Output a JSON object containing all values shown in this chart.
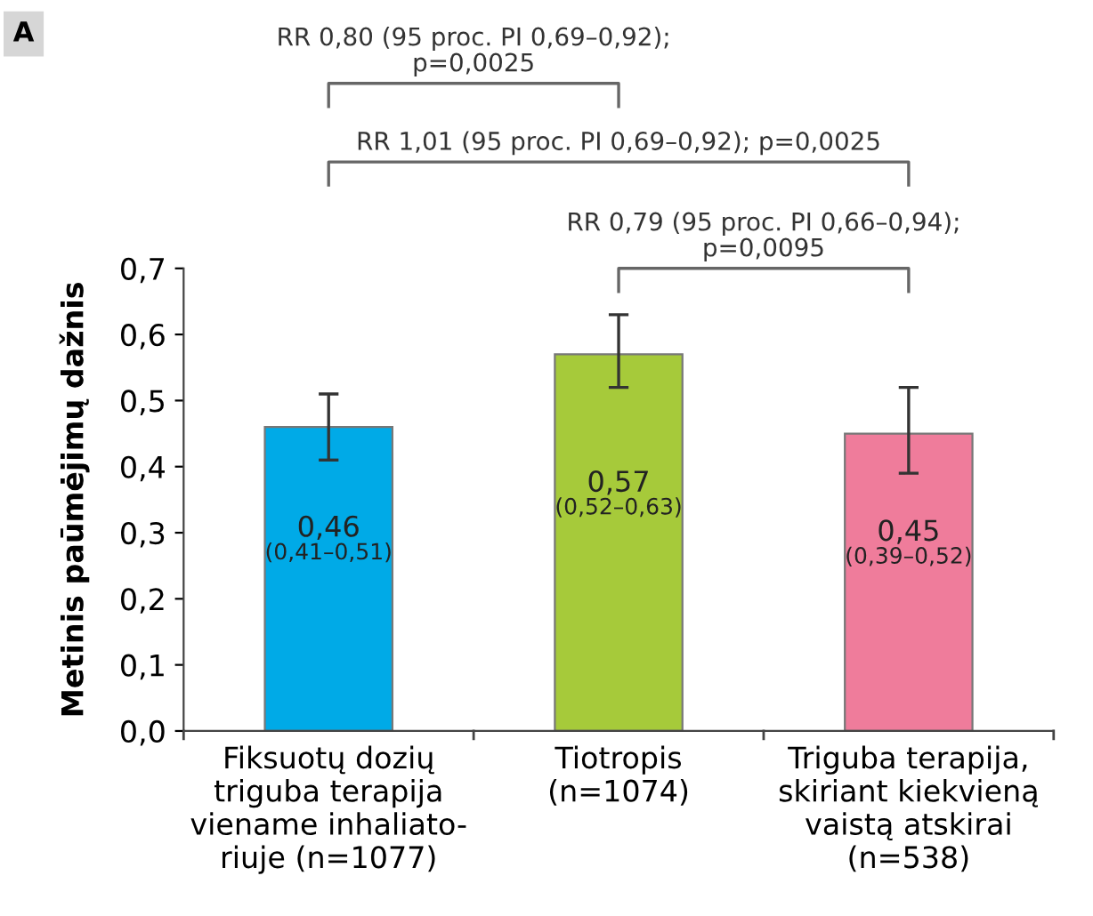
{
  "chart_data": {
    "type": "bar",
    "categories": [
      "Fiksuotų dozių\ntriguba terapija\nviename inhaliato-\nriuje (n=1077)",
      "Tiotropis\n(n=1074)",
      "Triguba terapija,\nskiriant kiekvieną\nvaistą atskirai\n(n=538)"
    ],
    "values": [
      0.46,
      0.57,
      0.45
    ],
    "colors": [
      "#00aae7",
      "#a6ca3a",
      "#ef7c9b"
    ],
    "errors": [
      [
        0.41,
        0.51
      ],
      [
        0.52,
        0.63
      ],
      [
        0.39,
        0.52
      ]
    ],
    "value_labels": [
      "0,46\n(0,41–0,51)",
      "0,57\n(0,52–0,63)",
      "0,45\n(0,39–0,52)"
    ],
    "ylabel": "Metinis paūmėjimų dažnis",
    "ylim": [
      0,
      0.7
    ],
    "yticks": [
      {
        "value": 0,
        "label": "0,0"
      },
      {
        "value": 0.1,
        "label": "0,1"
      },
      {
        "value": 0.2,
        "label": "0,2"
      },
      {
        "value": 0.3,
        "label": "0,3"
      },
      {
        "value": 0.4,
        "label": "0,4"
      },
      {
        "value": 0.5,
        "label": "0,5"
      },
      {
        "value": 0.6,
        "label": "0,6"
      },
      {
        "value": 0.7,
        "label": "0,7"
      }
    ],
    "grid": false,
    "annotations": [
      "A",
      "RR 0,80 (95 proc. PI 0,69–0,92);\np=0,0025",
      "RR 1,01 (95 proc. PI 0,69–0,92); p=0,0025",
      "RR 0,79 (95 proc. PI 0,66–0,94);\np=0,0095"
    ]
  }
}
